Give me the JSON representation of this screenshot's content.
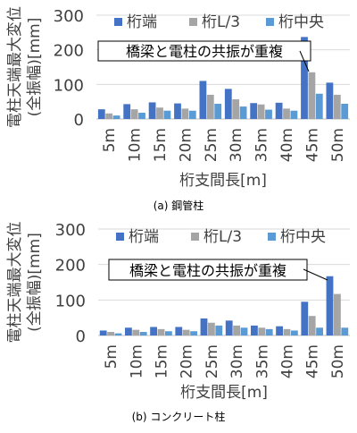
{
  "chart_data": [
    {
      "type": "bar",
      "caption": "(a) 鋼管柱",
      "ylabel_line1": "電柱天端最大変位",
      "ylabel_line2": "(全振幅)[mm]",
      "xlabel": "桁支間長[m]",
      "ylim": [
        0,
        300
      ],
      "yticks": [
        0,
        100,
        200,
        300
      ],
      "grid": true,
      "legend_position": "top",
      "categories": [
        "5m",
        "10m",
        "15m",
        "20m",
        "25m",
        "30m",
        "35m",
        "40m",
        "45m",
        "50m"
      ],
      "series": [
        {
          "name": "桁端",
          "color": "#4472c4",
          "values": [
            28,
            43,
            48,
            45,
            110,
            87,
            46,
            47,
            237,
            105
          ]
        },
        {
          "name": "桁L/3",
          "color": "#a5a5a5",
          "values": [
            16,
            28,
            33,
            30,
            70,
            57,
            42,
            30,
            135,
            70
          ]
        },
        {
          "name": "桁中央",
          "color": "#5b9bd5",
          "values": [
            10,
            18,
            24,
            24,
            44,
            36,
            27,
            24,
            73,
            44
          ]
        }
      ],
      "annotation": "橋梁と電柱の共振が重複"
    },
    {
      "type": "bar",
      "caption": "(b) コンクリート柱",
      "ylabel_line1": "電柱天端最大変位",
      "ylabel_line2": "(全振幅)[mm]",
      "xlabel": "桁支間長[m]",
      "ylim": [
        0,
        300
      ],
      "yticks": [
        0,
        100,
        200,
        300
      ],
      "grid": true,
      "legend_position": "top",
      "categories": [
        "5m",
        "10m",
        "15m",
        "20m",
        "25m",
        "30m",
        "35m",
        "40m",
        "45m",
        "50m"
      ],
      "series": [
        {
          "name": "桁端",
          "color": "#4472c4",
          "values": [
            14,
            22,
            24,
            24,
            48,
            42,
            28,
            26,
            95,
            167
          ]
        },
        {
          "name": "桁L/3",
          "color": "#a5a5a5",
          "values": [
            10,
            16,
            18,
            16,
            36,
            28,
            22,
            18,
            55,
            117
          ]
        },
        {
          "name": "桁中央",
          "color": "#5b9bd5",
          "values": [
            6,
            10,
            12,
            12,
            28,
            22,
            18,
            14,
            22,
            22
          ]
        }
      ],
      "annotation": "橋梁と電柱の共振が重複"
    }
  ]
}
